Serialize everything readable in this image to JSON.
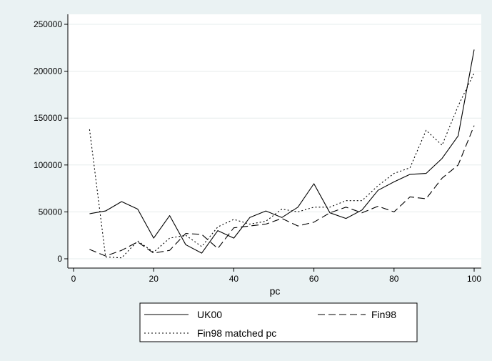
{
  "chart_data": {
    "type": "line",
    "title": "",
    "xlabel": "pc",
    "ylabel": "",
    "xlim": [
      0,
      100
    ],
    "ylim": [
      0,
      250000
    ],
    "xticks": [
      0,
      20,
      40,
      60,
      80,
      100
    ],
    "yticks": [
      0,
      50000,
      100000,
      150000,
      200000,
      250000
    ],
    "xtick_labels": [
      "0",
      "20",
      "40",
      "60",
      "80",
      "100"
    ],
    "ytick_labels": [
      "0",
      "50000",
      "100000",
      "150000",
      "200000",
      "250000"
    ],
    "grid": "horizontal",
    "legend_position": "bottom",
    "x": [
      4,
      8,
      12,
      16,
      20,
      24,
      28,
      32,
      36,
      40,
      44,
      48,
      52,
      56,
      60,
      64,
      68,
      72,
      76,
      80,
      84,
      88,
      92,
      96,
      100
    ],
    "series": [
      {
        "name": "UK00",
        "style": "solid",
        "values": [
          48000,
          51000,
          61000,
          53000,
          22000,
          46000,
          15000,
          6000,
          30000,
          22000,
          44000,
          51000,
          44000,
          55000,
          80000,
          49000,
          43000,
          52000,
          73000,
          82000,
          90000,
          91000,
          107000,
          131000,
          223000
        ]
      },
      {
        "name": "Fin98",
        "style": "dashed",
        "values": [
          10000,
          3000,
          9000,
          18000,
          6000,
          9000,
          27000,
          26000,
          11000,
          33000,
          35000,
          37000,
          43000,
          35000,
          39000,
          49000,
          55000,
          49000,
          56000,
          50000,
          66000,
          64000,
          86000,
          100000,
          142000
        ]
      },
      {
        "name": "Fin98 matched pc",
        "style": "dotted",
        "values": [
          138000,
          2000,
          1000,
          19000,
          7000,
          22000,
          25000,
          13000,
          34000,
          42000,
          37000,
          40000,
          53000,
          50000,
          55000,
          55000,
          62000,
          62000,
          78000,
          91000,
          97000,
          137000,
          121000,
          163000,
          198000
        ]
      }
    ]
  }
}
